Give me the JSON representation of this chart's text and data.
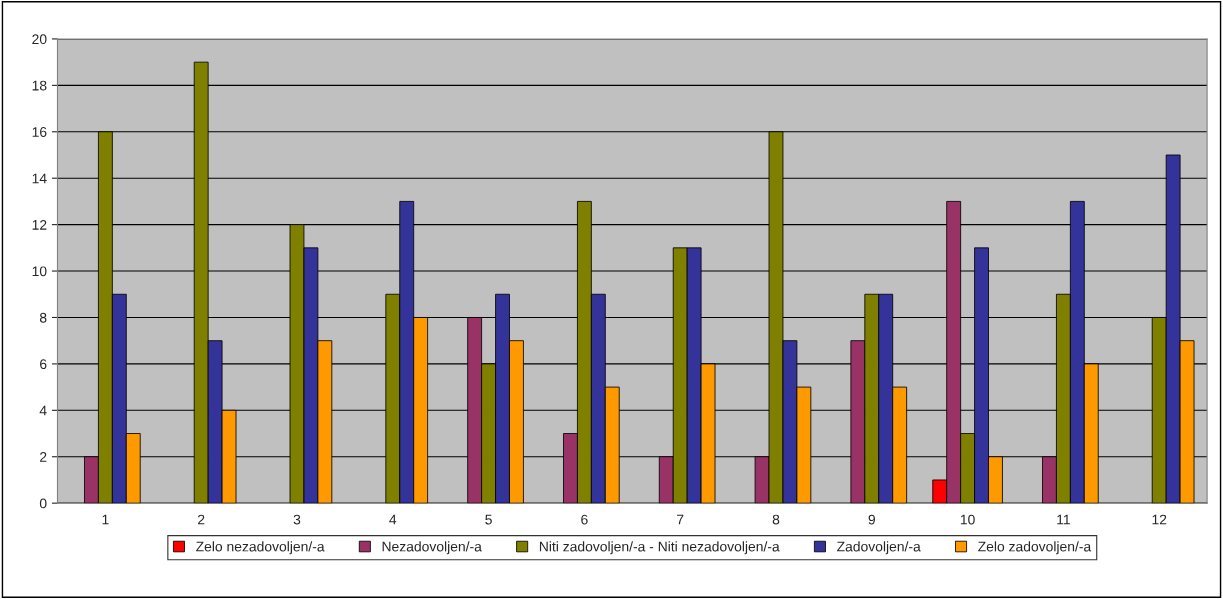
{
  "chart_data": {
    "type": "bar",
    "categories": [
      "1",
      "2",
      "3",
      "4",
      "5",
      "6",
      "7",
      "8",
      "9",
      "10",
      "11",
      "12"
    ],
    "series": [
      {
        "name": "Zelo nezadovoljen/-a",
        "color": "#ff0000",
        "values": [
          0,
          0,
          0,
          0,
          0,
          0,
          0,
          0,
          0,
          1,
          0,
          0
        ]
      },
      {
        "name": "Nezadovoljen/-a",
        "color": "#993366",
        "values": [
          2,
          0,
          0,
          0,
          8,
          3,
          2,
          2,
          7,
          13,
          2,
          0
        ]
      },
      {
        "name": "Niti zadovoljen/-a - Niti nezadovoljen/-a",
        "color": "#808000",
        "values": [
          16,
          19,
          12,
          9,
          6,
          13,
          11,
          16,
          9,
          3,
          9,
          8
        ]
      },
      {
        "name": "Zadovoljen/-a",
        "color": "#333399",
        "values": [
          9,
          7,
          11,
          13,
          9,
          9,
          11,
          7,
          9,
          11,
          13,
          15
        ]
      },
      {
        "name": "Zelo zadovoljen/-a",
        "color": "#ff9900",
        "values": [
          3,
          4,
          7,
          8,
          7,
          5,
          6,
          5,
          5,
          2,
          6,
          7
        ]
      }
    ],
    "ylim": [
      0,
      20
    ],
    "yticks": [
      0,
      2,
      4,
      6,
      8,
      10,
      12,
      14,
      16,
      18,
      20
    ],
    "grid": "y",
    "legend": "bottom"
  }
}
